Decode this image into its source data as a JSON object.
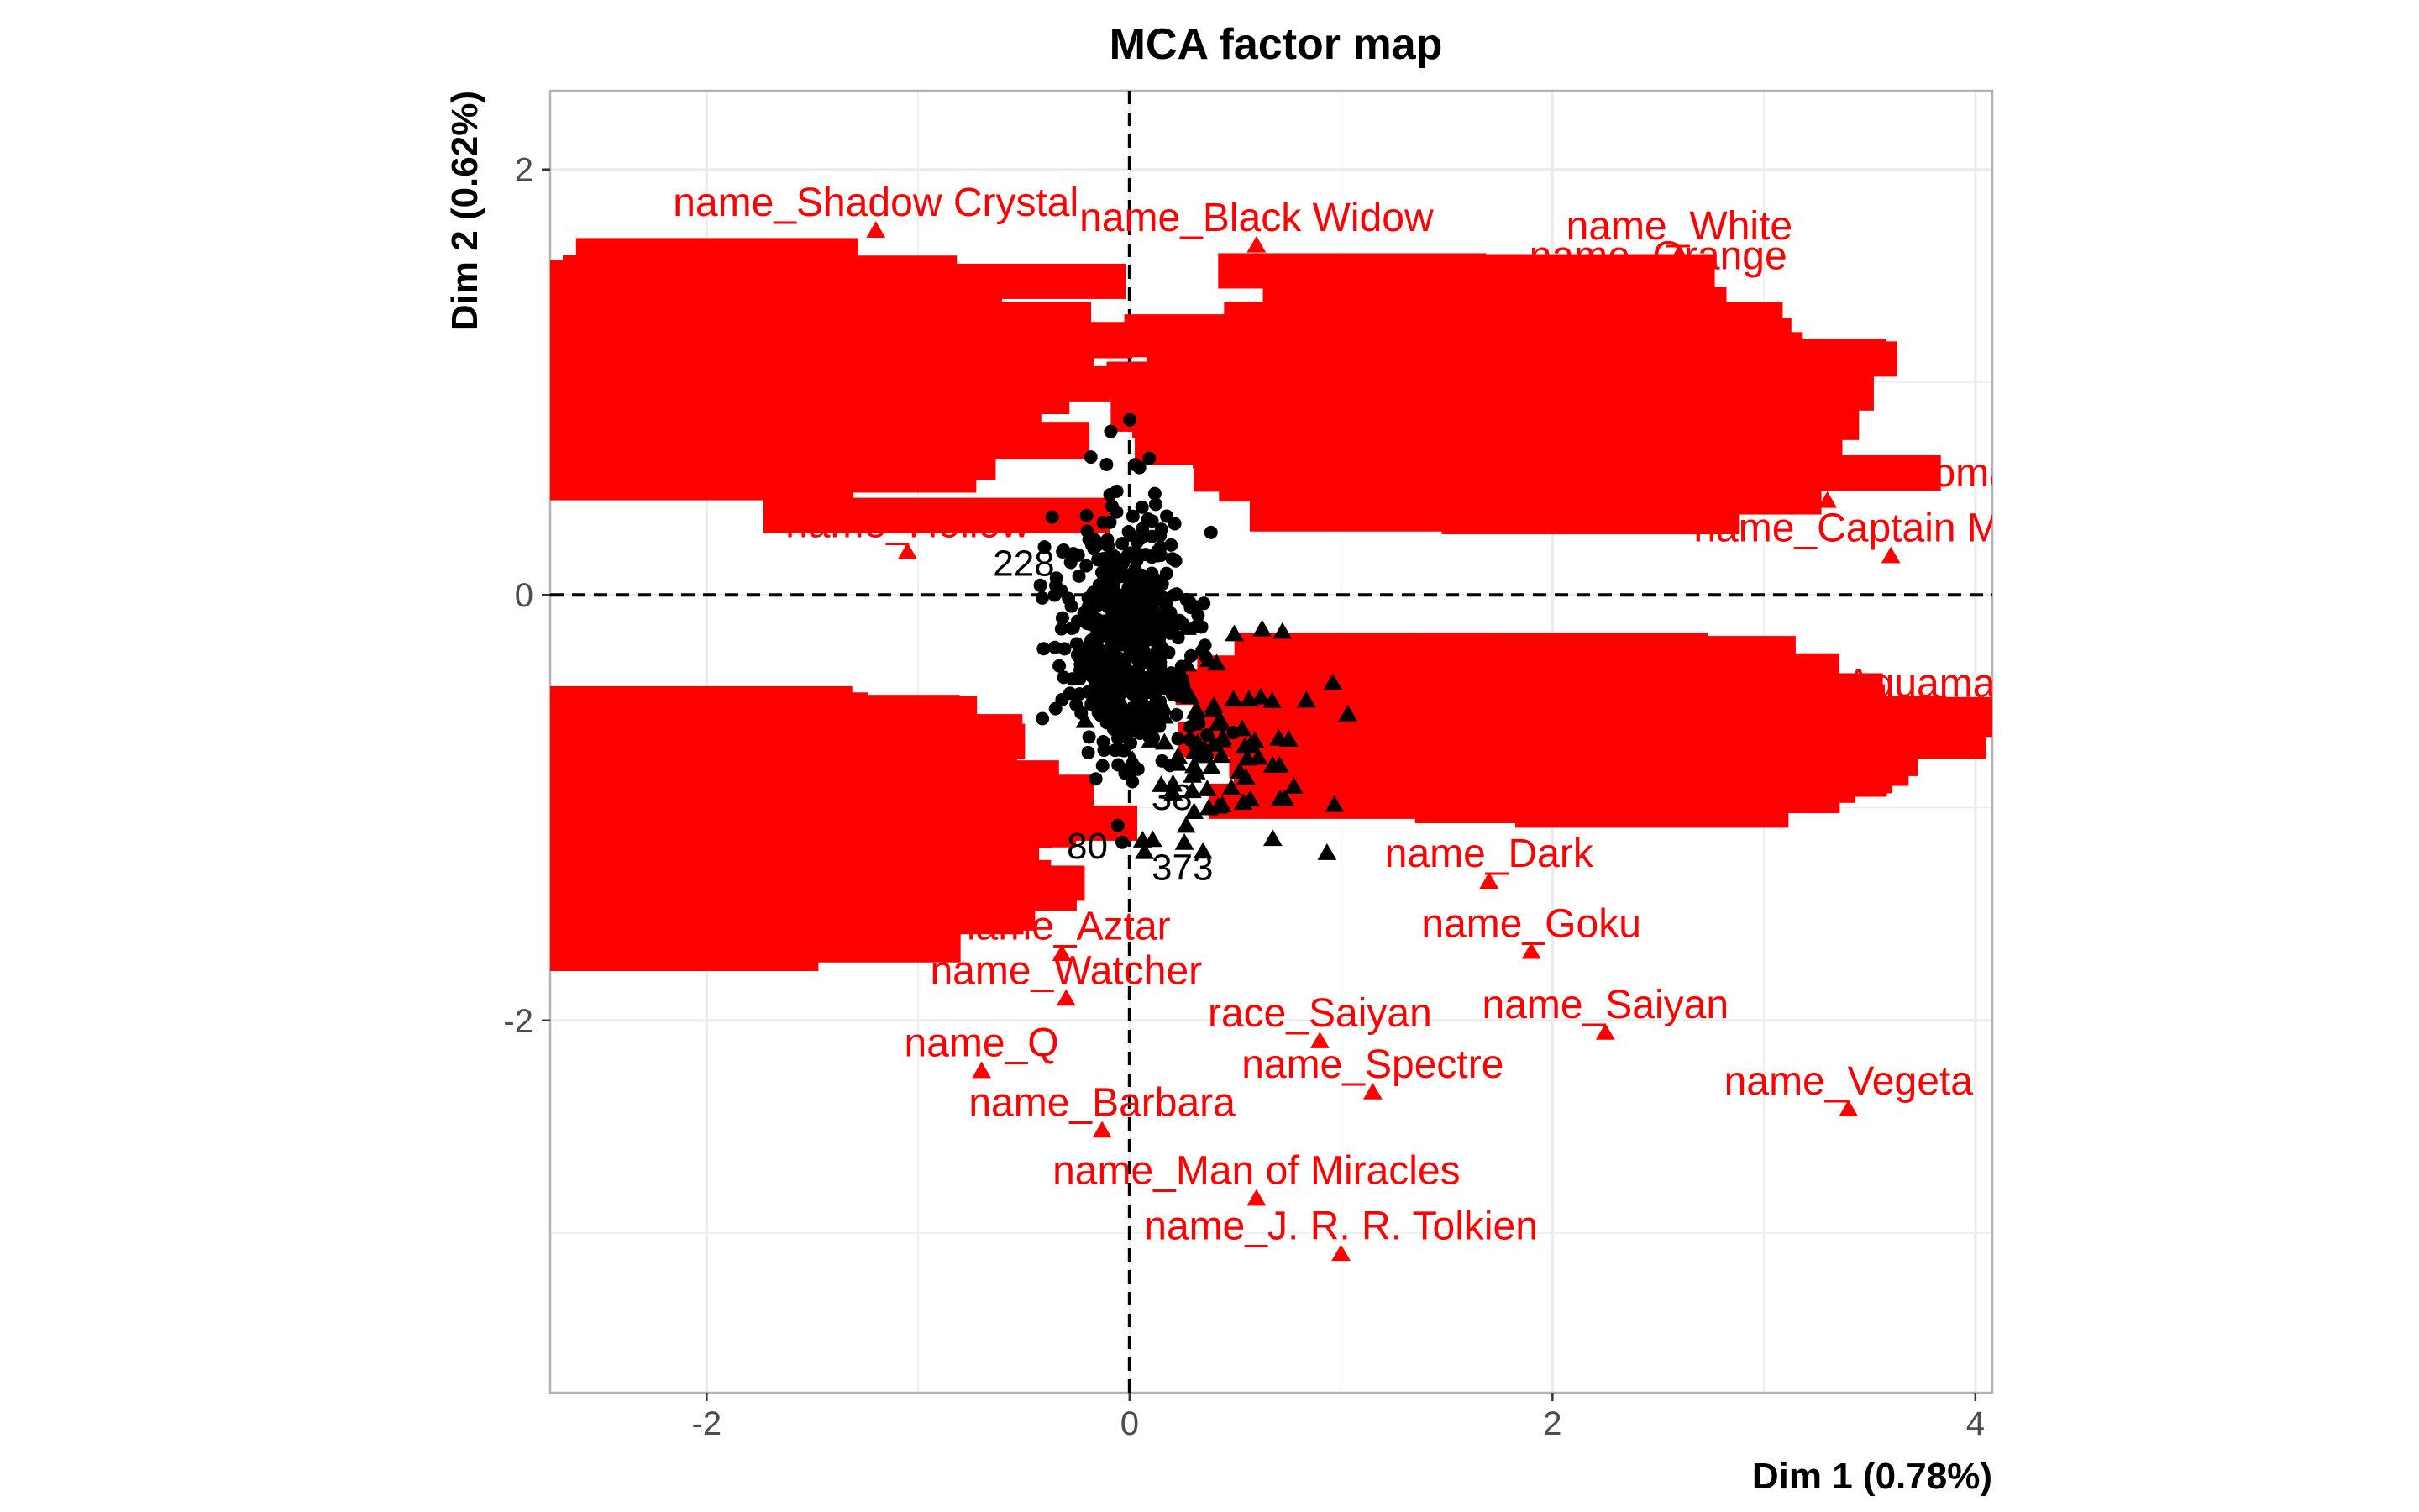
{
  "chart_data": {
    "type": "scatter",
    "title": "MCA factor map",
    "xlabel": "Dim 1 (0.78%)",
    "ylabel": "Dim 2 (0.62%)",
    "xlim": [
      -2.74,
      4.08
    ],
    "ylim": [
      -3.75,
      2.37
    ],
    "x_ticks": [
      -2,
      0,
      2,
      4
    ],
    "y_ticks": [
      -2,
      0,
      2
    ],
    "x_tick_labels": [
      "-2",
      "0",
      "2",
      "4"
    ],
    "y_tick_labels": [
      "-2",
      "0",
      "2"
    ],
    "grid": true,
    "reference_lines": {
      "x": 0,
      "y": 0,
      "style": "dashed"
    },
    "legend": "none",
    "colors": {
      "categories": "#ff0000",
      "individuals": "#000000",
      "grid": "#ebebeb",
      "panel_border": "#b3b3b3"
    },
    "category_points": [
      {
        "label": "name_Shadow Crystal",
        "x": -1.2,
        "y": 1.71
      },
      {
        "label": "name_Q",
        "x": -0.7,
        "y": -2.24
      },
      {
        "label": "name_Hollow",
        "x": -1.05,
        "y": 0.2
      },
      {
        "label": "name_Watcher",
        "x": -0.3,
        "y": -1.9
      },
      {
        "label": "name_Aztar",
        "x": -0.32,
        "y": -1.69
      },
      {
        "label": "name_Barbara",
        "x": -0.13,
        "y": -2.52
      },
      {
        "label": "name_Man of Miracles",
        "x": 0.6,
        "y": -2.84
      },
      {
        "label": "name_Spectre",
        "x": 1.15,
        "y": -2.34
      },
      {
        "label": "name_Goku",
        "x": 1.9,
        "y": -1.68
      },
      {
        "label": "name_Dark",
        "x": 1.7,
        "y": -1.35
      },
      {
        "label": "name_Wonder Woman",
        "x": 3.3,
        "y": 0.44
      },
      {
        "label": "name_Black Widow",
        "x": 0.6,
        "y": 1.64
      },
      {
        "label": "name_Saiyan",
        "x": 2.25,
        "y": -2.06
      },
      {
        "label": "race_Saiyan",
        "x": 0.9,
        "y": -2.1
      },
      {
        "label": "name_J. R. R. Tolkien",
        "x": 1.0,
        "y": -3.1
      },
      {
        "label": "name_Vegeta",
        "x": 3.4,
        "y": -2.42
      },
      {
        "label": "name_Aquaman",
        "x": 3.5,
        "y": -0.55
      },
      {
        "label": "name_Captain Marvel",
        "x": 3.6,
        "y": 0.18
      },
      {
        "label": "name_Orange",
        "x": 2.5,
        "y": 1.46
      },
      {
        "label": "name_White",
        "x": 2.6,
        "y": 1.6
      }
    ],
    "individual_points": [
      {
        "label": "228",
        "x": -0.5,
        "y": 0.15
      },
      {
        "label": "80",
        "x": -0.2,
        "y": -1.18
      },
      {
        "label": "373",
        "x": 0.25,
        "y": -1.28
      },
      {
        "label": "38",
        "x": 0.2,
        "y": -0.95
      }
    ]
  }
}
